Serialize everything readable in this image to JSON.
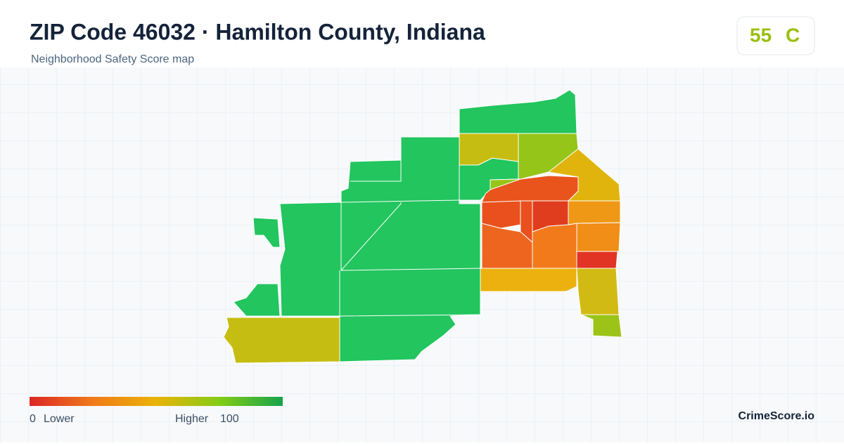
{
  "header": {
    "title": "ZIP Code 46032 · Hamilton County, Indiana",
    "subtitle": "Neighborhood Safety Score map"
  },
  "score": {
    "value": 55,
    "grade": "C"
  },
  "legend": {
    "min": 0,
    "min_label": "Lower",
    "max_label": "Higher",
    "max": 100
  },
  "brand": "CrimeScore.io"
}
